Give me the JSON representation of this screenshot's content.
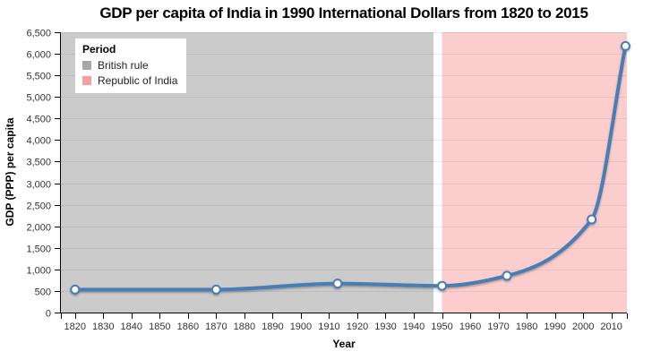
{
  "chart_data": {
    "type": "line",
    "title": "GDP per capita of India in 1990 International Dollars from 1820 to 2015",
    "xlabel": "Year",
    "ylabel": "GDP (PPP) per capita",
    "xlim": [
      1815,
      2015.5
    ],
    "ylim": [
      0,
      6500
    ],
    "x_ticks": [
      1820,
      1830,
      1840,
      1850,
      1860,
      1870,
      1880,
      1890,
      1900,
      1910,
      1920,
      1930,
      1940,
      1950,
      1960,
      1970,
      1980,
      1990,
      2000,
      2010
    ],
    "y_ticks": [
      0,
      500,
      1000,
      1500,
      2000,
      2500,
      3000,
      3500,
      4000,
      4500,
      5000,
      5500,
      6000,
      6500
    ],
    "grid": "horizontal",
    "series": [
      {
        "name": "GDP per capita of India",
        "x": [
          1820,
          1870,
          1913,
          1950,
          1973,
          2003,
          2015
        ],
        "values": [
          533,
          533,
          673,
          619,
          853,
          2160,
          6180
        ]
      }
    ],
    "regions": [
      {
        "label": "British rule",
        "from": 1815,
        "to": 1947,
        "fill": "#cbcbcb",
        "legend_color": "#a7a7a7"
      },
      {
        "label": "Republic of India",
        "from": 1950,
        "to": 2015.5,
        "fill": "#fbcdcd",
        "legend_color": "#f79f9f"
      }
    ],
    "legend": {
      "title": "Period",
      "position": "top-left"
    },
    "colors": {
      "line": "#4a7eb5",
      "marker_fill": "#ffffff",
      "axis": "#000000",
      "tick_label": "#333333",
      "gridline": "rgba(0,0,0,0.07)"
    }
  }
}
